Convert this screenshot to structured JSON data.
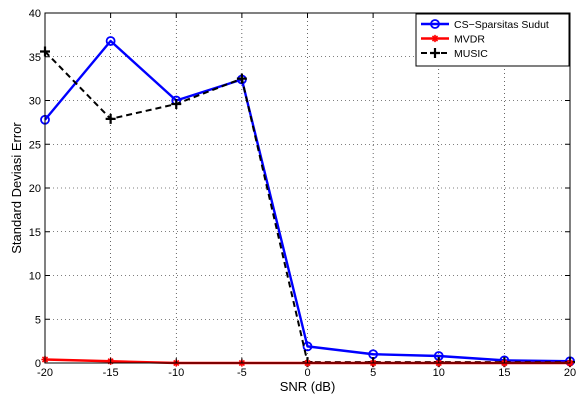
{
  "chart_data": {
    "type": "line",
    "xlabel": "SNR (dB)",
    "ylabel": "Standard Deviasi Error",
    "xlim": [
      -20,
      20
    ],
    "ylim": [
      0,
      40
    ],
    "xticks": [
      -20,
      -15,
      -10,
      -5,
      0,
      5,
      10,
      15,
      20
    ],
    "yticks": [
      0,
      5,
      10,
      15,
      20,
      25,
      30,
      35,
      40
    ],
    "xtick_labels": [
      "-20",
      "-15",
      "-10",
      "-5",
      "0",
      "5",
      "10",
      "15",
      "20"
    ],
    "ytick_labels": [
      "0",
      "5",
      "10",
      "15",
      "20",
      "25",
      "30",
      "35",
      "40"
    ],
    "grid": true,
    "legend_position": "top-right",
    "x": [
      -20,
      -15,
      -10,
      -5,
      0,
      5,
      10,
      15,
      20
    ],
    "series": [
      {
        "name": "CS−Sparsitas Sudut",
        "values": [
          27.8,
          36.8,
          30.0,
          32.4,
          1.9,
          1.0,
          0.8,
          0.3,
          0.2
        ],
        "color": "#0000ff",
        "line_style": "solid",
        "marker": "circle"
      },
      {
        "name": "MVDR",
        "values": [
          0.4,
          0.2,
          0.0,
          0.0,
          0.0,
          0.0,
          0.0,
          0.0,
          0.0
        ],
        "color": "#ff0000",
        "line_style": "solid",
        "marker": "star"
      },
      {
        "name": "MUSIC",
        "values": [
          35.6,
          27.9,
          29.6,
          32.5,
          0.1,
          0.1,
          0.1,
          0.1,
          0.1
        ],
        "color": "#000000",
        "line_style": "dashed",
        "marker": "plus"
      }
    ]
  }
}
